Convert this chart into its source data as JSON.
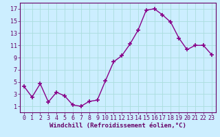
{
  "x": [
    0,
    1,
    2,
    3,
    4,
    5,
    6,
    7,
    8,
    9,
    10,
    11,
    12,
    13,
    14,
    15,
    16,
    17,
    18,
    19,
    20,
    21,
    22,
    23
  ],
  "y": [
    4.3,
    2.5,
    4.7,
    1.7,
    3.3,
    2.7,
    1.2,
    1.0,
    1.8,
    2.0,
    5.2,
    8.3,
    9.3,
    11.2,
    13.5,
    16.8,
    17.0,
    16.0,
    14.8,
    12.2,
    10.3,
    11.0,
    11.0,
    9.5
  ],
  "line_color": "#880088",
  "marker": "+",
  "marker_size": 5,
  "marker_lw": 1.2,
  "bg_color": "#cceeff",
  "grid_color": "#aadddd",
  "xlabel": "Windchill (Refroidissement éolien,°C)",
  "xlim": [
    -0.5,
    23.5
  ],
  "ylim": [
    0,
    18
  ],
  "yticks": [
    1,
    3,
    5,
    7,
    9,
    11,
    13,
    15,
    17
  ],
  "xticks": [
    0,
    1,
    2,
    3,
    4,
    5,
    6,
    7,
    8,
    9,
    10,
    11,
    12,
    13,
    14,
    15,
    16,
    17,
    18,
    19,
    20,
    21,
    22,
    23
  ],
  "tick_color": "#660066",
  "label_color": "#660066",
  "spine_color": "#660066",
  "xlabel_fontsize": 6.5,
  "tick_fontsize": 6.0,
  "linewidth": 1.0
}
